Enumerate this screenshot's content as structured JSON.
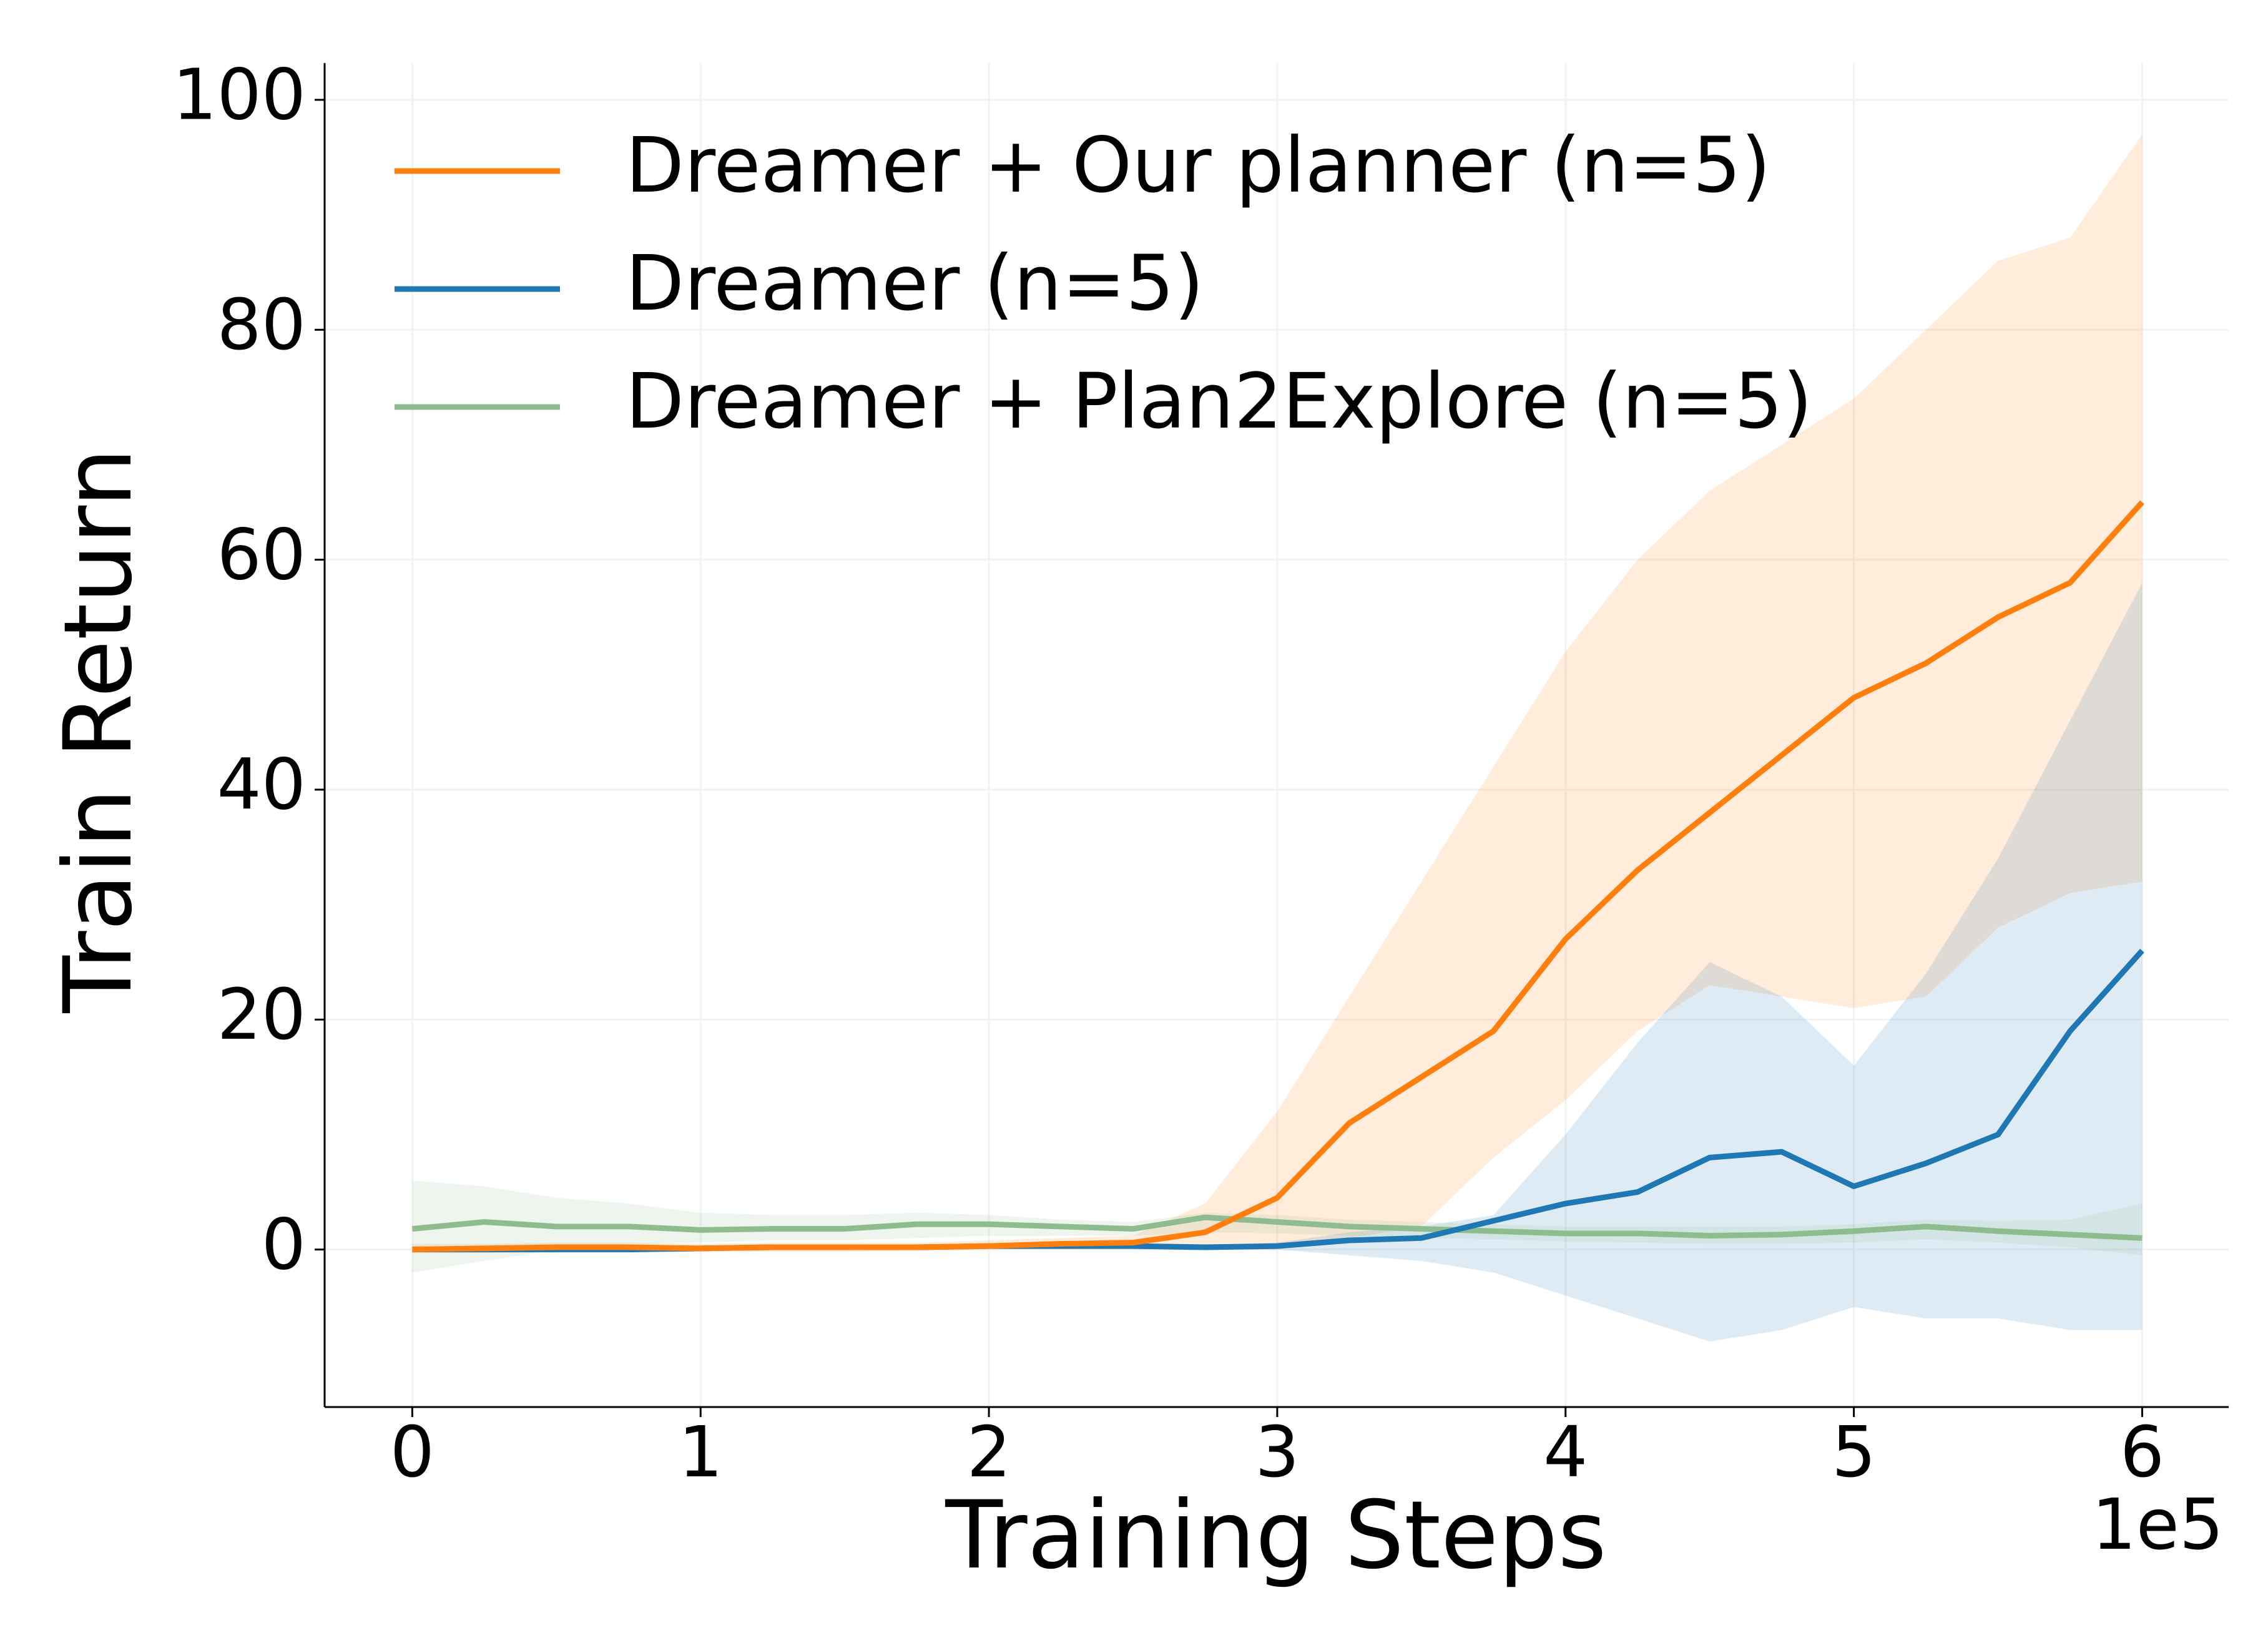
{
  "chart_data": {
    "type": "line",
    "x_label": "Training Steps",
    "y_label": "Train Return",
    "x_offset_label": "1e5",
    "x": [
      0,
      25000,
      50000,
      75000,
      100000,
      125000,
      150000,
      175000,
      200000,
      225000,
      250000,
      275000,
      300000,
      325000,
      350000,
      375000,
      400000,
      425000,
      450000,
      475000,
      500000,
      525000,
      550000,
      575000,
      600000
    ],
    "series": [
      {
        "name": "Dreamer + Our planner (n=5)",
        "color": "#ff7f0e",
        "values": [
          0,
          0.1,
          0.2,
          0.2,
          0.1,
          0.2,
          0.2,
          0.2,
          0.3,
          0.5,
          0.6,
          1.5,
          4.5,
          11,
          15,
          19,
          27,
          33,
          38,
          43,
          48,
          51,
          55,
          58,
          65
        ],
        "upper": [
          0.5,
          0.5,
          0.6,
          0.6,
          0.5,
          0.6,
          0.6,
          0.6,
          0.8,
          1,
          1.2,
          4,
          12,
          22,
          32,
          42,
          52,
          60,
          66,
          70,
          74,
          80,
          86,
          88,
          97
        ],
        "lower": [
          -0.3,
          -0.3,
          -0.2,
          -0.2,
          -0.2,
          -0.2,
          -0.2,
          -0.1,
          0,
          0,
          0,
          0,
          0,
          1,
          2,
          8,
          13,
          19,
          23,
          22,
          21,
          22,
          28,
          31,
          32
        ]
      },
      {
        "name": "Dreamer (n=5)",
        "color": "#1f77b4",
        "values": [
          0,
          0,
          0,
          0,
          0.1,
          0.2,
          0.2,
          0.2,
          0.3,
          0.3,
          0.3,
          0.2,
          0.3,
          0.8,
          1,
          2.5,
          4,
          5,
          8,
          8.5,
          5.5,
          7.5,
          10,
          19,
          26
        ],
        "upper": [
          0.2,
          0.2,
          0.2,
          0.2,
          0.3,
          0.4,
          0.4,
          0.4,
          0.5,
          0.5,
          0.5,
          0.4,
          0.6,
          1.5,
          2,
          3,
          10,
          18,
          25,
          22,
          16,
          24,
          34,
          46,
          58
        ],
        "lower": [
          -0.2,
          -0.2,
          -0.2,
          -0.2,
          -0.1,
          0,
          0,
          0,
          0.1,
          0.1,
          0.1,
          0,
          0,
          -0.5,
          -1,
          -2,
          -4,
          -6,
          -8,
          -7,
          -5,
          -6,
          -6,
          -7,
          -7
        ]
      },
      {
        "name": "Dreamer + Plan2Explore (n=5)",
        "color": "#8fbc8f",
        "values": [
          1.8,
          2.4,
          2,
          2,
          1.7,
          1.8,
          1.8,
          2.2,
          2.2,
          2,
          1.8,
          2.8,
          2.4,
          2,
          1.8,
          1.6,
          1.4,
          1.4,
          1.2,
          1.3,
          1.6,
          2,
          1.6,
          1.3,
          1
        ],
        "upper": [
          6,
          5.5,
          4.5,
          4,
          3.2,
          3,
          3,
          3.2,
          3,
          2.6,
          2.4,
          3.2,
          3,
          2.6,
          2.4,
          2.2,
          2,
          2,
          2,
          2,
          2.2,
          2.6,
          2.5,
          2.6,
          4
        ],
        "lower": [
          -2,
          -1,
          0,
          0.5,
          0.6,
          0.8,
          0.8,
          1,
          1.2,
          1.2,
          1.2,
          1.5,
          1.4,
          1.2,
          1,
          0.9,
          0.7,
          0.6,
          0.5,
          0.5,
          0.6,
          0.9,
          0.6,
          0.2,
          -0.5
        ]
      }
    ],
    "xlim": [
      -30400,
      630000
    ],
    "ylim": [
      -13.7,
      103.2
    ],
    "xticks": [
      {
        "value": 0,
        "label": "0"
      },
      {
        "value": 100000,
        "label": "1"
      },
      {
        "value": 200000,
        "label": "2"
      },
      {
        "value": 300000,
        "label": "3"
      },
      {
        "value": 400000,
        "label": "4"
      },
      {
        "value": 500000,
        "label": "5"
      },
      {
        "value": 600000,
        "label": "6"
      }
    ],
    "yticks": [
      0,
      20,
      40,
      60,
      80,
      100
    ],
    "grid": true,
    "legend": "upper left"
  }
}
